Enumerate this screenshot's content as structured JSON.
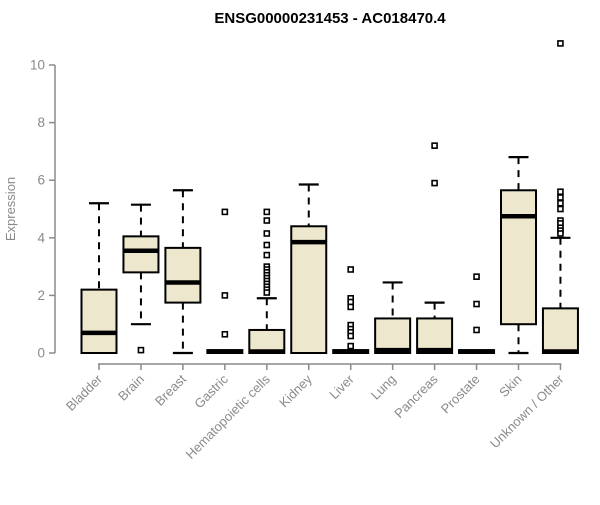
{
  "title": "ENSG00000231453 - AC018470.4",
  "chart_data": {
    "type": "boxplot",
    "title": "ENSG00000231453 - AC018470.4",
    "xlabel": "",
    "ylabel": "Expression",
    "ylim": [
      0,
      11.2
    ],
    "yticks": [
      0,
      2,
      4,
      6,
      8,
      10
    ],
    "grid": false,
    "legend": "none",
    "colors": {
      "box_fill": "#ece7cd",
      "box_stroke": "#000000",
      "median": "#000000",
      "whisker": "#000000",
      "axis": "#8a8a8a",
      "tick_label": "#8a8a8a",
      "title": "#000000",
      "background": "#ffffff"
    },
    "categories": [
      "Bladder",
      "Brain",
      "Breast",
      "Gastric",
      "Hematopoietic cells",
      "Kidney",
      "Liver",
      "Lung",
      "Pancreas",
      "Prostate",
      "Skin",
      "Unknown / Other"
    ],
    "series": [
      {
        "category": "Bladder",
        "low": 0,
        "q1": 0,
        "median": 0.7,
        "q3": 2.2,
        "high": 5.2,
        "outliers": []
      },
      {
        "category": "Brain",
        "low": 1.0,
        "q1": 2.8,
        "median": 3.55,
        "q3": 4.05,
        "high": 5.15,
        "outliers": [
          0.1
        ]
      },
      {
        "category": "Breast",
        "low": 0,
        "q1": 1.75,
        "median": 2.45,
        "q3": 3.65,
        "high": 5.65,
        "outliers": []
      },
      {
        "category": "Gastric",
        "low": 0,
        "q1": 0,
        "median": 0.05,
        "q3": 0.1,
        "high": 0.1,
        "outliers": [
          4.9,
          2.0,
          0.65
        ]
      },
      {
        "category": "Hematopoietic cells",
        "low": 0,
        "q1": 0,
        "median": 0.05,
        "q3": 0.8,
        "high": 1.9,
        "outliers": [
          4.9,
          4.6,
          4.15,
          3.75,
          3.4,
          3.0,
          2.9,
          2.8,
          2.7,
          2.6,
          2.5,
          2.4,
          2.3,
          2.2,
          2.1
        ]
      },
      {
        "category": "Kidney",
        "low": 0,
        "q1": 0,
        "median": 3.85,
        "q3": 4.4,
        "high": 5.85,
        "outliers": []
      },
      {
        "category": "Liver",
        "low": 0,
        "q1": 0,
        "median": 0.05,
        "q3": 0.1,
        "high": 0.1,
        "outliers": [
          2.9,
          1.9,
          1.77,
          1.6,
          0.97,
          0.83,
          0.72,
          0.59,
          0.24
        ]
      },
      {
        "category": "Lung",
        "low": 0,
        "q1": 0,
        "median": 0.1,
        "q3": 1.2,
        "high": 2.45,
        "outliers": []
      },
      {
        "category": "Pancreas",
        "low": 0,
        "q1": 0,
        "median": 0.1,
        "q3": 1.2,
        "high": 1.75,
        "outliers": [
          7.2,
          5.9
        ]
      },
      {
        "category": "Prostate",
        "low": 0,
        "q1": 0,
        "median": 0.05,
        "q3": 0.1,
        "high": 0.1,
        "outliers": [
          2.65,
          1.7,
          0.8
        ]
      },
      {
        "category": "Skin",
        "low": 0,
        "q1": 1.0,
        "median": 4.75,
        "q3": 5.65,
        "high": 6.8,
        "outliers": []
      },
      {
        "category": "Unknown / Other",
        "low": 0,
        "q1": 0,
        "median": 0.05,
        "q3": 1.55,
        "high": 4.0,
        "outliers": [
          10.75,
          5.6,
          5.4,
          5.2,
          5.0,
          4.6,
          4.5,
          4.35,
          4.25,
          4.15
        ]
      }
    ]
  }
}
